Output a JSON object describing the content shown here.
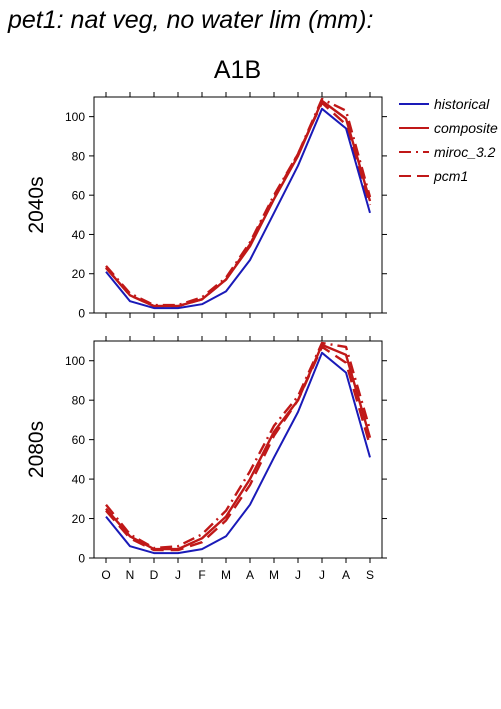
{
  "title": "pet1: nat veg, no water lim (mm):",
  "scenario": "A1B",
  "legend": [
    {
      "label": "historical",
      "color": "#1a1ab8",
      "dash": "solid"
    },
    {
      "label": "composite",
      "color": "#c01818",
      "dash": "solid"
    },
    {
      "label": "miroc_3.2",
      "color": "#c01818",
      "dash": "dashdot"
    },
    {
      "label": "pcm1",
      "color": "#c01818",
      "dash": "dashed"
    }
  ],
  "chart_data": [
    {
      "type": "line",
      "ylabel": "2040s",
      "categories": [
        "O",
        "N",
        "D",
        "J",
        "F",
        "M",
        "A",
        "M",
        "J",
        "J",
        "A",
        "S"
      ],
      "ylim": [
        0,
        110
      ],
      "yticks": [
        0,
        20,
        40,
        60,
        80,
        100
      ],
      "series": [
        {
          "name": "historical",
          "values": [
            21,
            6,
            2.5,
            2.5,
            4.5,
            11,
            27,
            51,
            75,
            104,
            94,
            51
          ]
        },
        {
          "name": "composite",
          "values": [
            23,
            9,
            3.5,
            3.5,
            7,
            17,
            34,
            58,
            80,
            108,
            99,
            57
          ]
        },
        {
          "name": "miroc_3.2",
          "values": [
            24,
            10,
            4,
            4,
            8,
            18,
            36,
            60,
            81,
            109,
            103,
            59
          ]
        },
        {
          "name": "pcm1",
          "values": [
            23,
            9,
            3.5,
            3.5,
            7,
            17,
            35,
            59,
            81,
            107,
            96,
            55
          ]
        }
      ]
    },
    {
      "type": "line",
      "ylabel": "2080s",
      "categories": [
        "O",
        "N",
        "D",
        "J",
        "F",
        "M",
        "A",
        "M",
        "J",
        "J",
        "A",
        "S"
      ],
      "ylim": [
        0,
        110
      ],
      "yticks": [
        0,
        20,
        40,
        60,
        80,
        100
      ],
      "series": [
        {
          "name": "historical",
          "values": [
            21,
            6,
            2.5,
            2.5,
            4.5,
            11,
            27,
            51,
            74,
            104,
            94,
            51
          ]
        },
        {
          "name": "composite",
          "values": [
            25,
            11,
            4.5,
            4.5,
            10,
            21,
            40,
            64,
            80,
            108,
            103,
            61
          ]
        },
        {
          "name": "miroc_3.2",
          "values": [
            27,
            12,
            5,
            6,
            12,
            24,
            44,
            67,
            82,
            109,
            107,
            65
          ]
        },
        {
          "name": "pcm1",
          "values": [
            24,
            10,
            4,
            4,
            8,
            19,
            37,
            62,
            80,
            107,
            99,
            57
          ]
        }
      ]
    }
  ]
}
